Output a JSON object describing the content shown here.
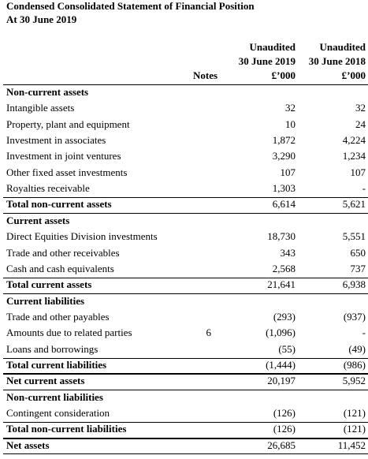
{
  "header": {
    "title": "Condensed Consolidated Statement of Financial Position",
    "subtitle": "At 30 June 2019"
  },
  "columns": {
    "notes": "Notes",
    "col1": [
      "Unaudited",
      "30 June 2019",
      "£’000"
    ],
    "col2": [
      "Unaudited",
      "30 June 2018",
      "£’000"
    ]
  },
  "rows": [
    {
      "label": "Non-current assets",
      "kind": "heading"
    },
    {
      "label": "Intangible assets",
      "kind": "item",
      "col1": "32",
      "col2": "32"
    },
    {
      "label": "Property, plant and equipment",
      "kind": "item",
      "col1": "10",
      "col2": "24"
    },
    {
      "label": "Investment in associates",
      "kind": "item",
      "col1": "1,872",
      "col2": "4,224"
    },
    {
      "label": "Investment in joint ventures",
      "kind": "item",
      "col1": "3,290",
      "col2": "1,234"
    },
    {
      "label": "Other fixed asset investments",
      "kind": "item",
      "col1": "107",
      "col2": "107"
    },
    {
      "label": "Royalties receivable",
      "kind": "item",
      "col1": "1,303",
      "col2": "-"
    },
    {
      "label": "Total non-current assets",
      "kind": "total",
      "col1": "6,614",
      "col2": "5,621"
    },
    {
      "label": "Current assets",
      "kind": "heading"
    },
    {
      "label": "Direct Equities Division investments",
      "kind": "item",
      "col1": "18,730",
      "col2": "5,551"
    },
    {
      "label": "Trade and other receivables",
      "kind": "item",
      "col1": "343",
      "col2": "650"
    },
    {
      "label": "Cash and cash equivalents",
      "kind": "item",
      "col1": "2,568",
      "col2": "737"
    },
    {
      "label": "Total current assets",
      "kind": "total",
      "col1": "21,641",
      "col2": "6,938"
    },
    {
      "label": "Current liabilities",
      "kind": "heading"
    },
    {
      "label": "Trade and other payables",
      "kind": "item",
      "col1": "(293)",
      "col2": "(937)"
    },
    {
      "label": "Amounts due to related parties",
      "kind": "item",
      "notes": "6",
      "col1": "(1,096)",
      "col2": "-"
    },
    {
      "label": "Loans and borrowings",
      "kind": "item",
      "col1": "(55)",
      "col2": "(49)"
    },
    {
      "label": "Total current liabilities",
      "kind": "total",
      "col1": "(1,444)",
      "col2": "(986)"
    },
    {
      "label": "Net current assets",
      "kind": "total",
      "col1": "20,197",
      "col2": "5,952"
    },
    {
      "label": "Non-current liabilities",
      "kind": "heading"
    },
    {
      "label": "Contingent consideration",
      "kind": "item",
      "col1": "(126)",
      "col2": "(121)"
    },
    {
      "label": "Total non-current liabilities",
      "kind": "total",
      "col1": "(126)",
      "col2": "(121)"
    },
    {
      "label": "Net assets",
      "kind": "total",
      "col1": "26,685",
      "col2": "11,452"
    }
  ]
}
